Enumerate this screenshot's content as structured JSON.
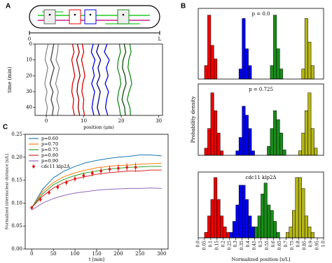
{
  "panel_labels": {
    "a": "A",
    "b": "B",
    "c": "C"
  },
  "diagram": {
    "start_label": "0",
    "end_label": "L"
  },
  "chart_data": [
    {
      "type": "line",
      "ylabel": "time (min)",
      "xlabel": "position (μm)",
      "xlim": [
        -3,
        31
      ],
      "xticks": [
        0,
        10,
        20,
        30
      ],
      "ylim": [
        0,
        45
      ],
      "yticks": [
        0,
        10,
        20,
        30,
        40
      ],
      "y_inverted": true,
      "y": [
        0,
        5,
        10,
        15,
        20,
        25,
        30,
        35,
        40,
        45
      ],
      "series": [
        {
          "color": "#888888",
          "values": [
            0.5,
            0.0,
            -0.3,
            0.4,
            0.0,
            -0.4,
            0.2,
            -0.2,
            0.3,
            0.0
          ]
        },
        {
          "color": "#444444",
          "values": [
            2.0,
            1.6,
            1.2,
            2.1,
            1.5,
            1.0,
            1.8,
            1.3,
            1.9,
            1.6
          ]
        },
        {
          "color": "#888888",
          "values": [
            3.2,
            3.0,
            2.6,
            3.5,
            3.0,
            2.5,
            3.2,
            2.8,
            3.4,
            3.0
          ]
        },
        {
          "color": "#e00000",
          "values": [
            7.0,
            7.4,
            6.8,
            7.2,
            7.6,
            7.0,
            6.8,
            7.3,
            7.1,
            7.5
          ]
        },
        {
          "color": "#900000",
          "values": [
            8.3,
            8.8,
            8.1,
            8.6,
            9.0,
            8.4,
            8.2,
            8.7,
            8.5,
            8.9
          ]
        },
        {
          "color": "#e00000",
          "values": [
            9.6,
            10.0,
            9.4,
            9.9,
            10.3,
            9.7,
            9.5,
            10.0,
            9.8,
            10.2
          ]
        },
        {
          "color": "#0000dd",
          "values": [
            12.5,
            12.0,
            13.0,
            12.4,
            12.8,
            12.1,
            12.9,
            12.5,
            12.2,
            12.7
          ]
        },
        {
          "color": "#000080",
          "values": [
            14.0,
            13.4,
            14.5,
            13.8,
            14.3,
            13.5,
            14.4,
            14.0,
            13.6,
            14.2
          ]
        },
        {
          "color": "#0000dd",
          "values": [
            16.2,
            15.5,
            16.8,
            16.0,
            16.5,
            15.7,
            16.6,
            16.1,
            15.8,
            16.4
          ]
        },
        {
          "color": "#1a8c1a",
          "values": [
            19.5,
            19.8,
            19.2,
            19.0,
            19.6,
            19.9,
            19.3,
            19.0,
            19.5,
            19.8
          ]
        },
        {
          "color": "#0b4d0b",
          "values": [
            20.8,
            21.2,
            20.5,
            20.3,
            21.0,
            21.3,
            20.6,
            20.2,
            20.9,
            21.1
          ]
        },
        {
          "color": "#1a8c1a",
          "values": [
            22.3,
            22.6,
            22.0,
            21.8,
            22.4,
            22.8,
            22.1,
            21.6,
            22.3,
            22.5
          ]
        }
      ]
    },
    {
      "type": "histogram",
      "title": "p = 0.0",
      "xlim": [
        0,
        1
      ],
      "ylim": [
        0,
        10.5
      ],
      "series": [
        {
          "color": "#ee0000",
          "bins": [
            0.05,
            0.075,
            0.1,
            0.125,
            0.15
          ],
          "values": [
            2,
            9.5,
            5,
            3
          ]
        },
        {
          "color": "#0000ee",
          "bins": [
            0.325,
            0.35,
            0.375,
            0.4,
            0.425
          ],
          "values": [
            1.5,
            9,
            4.5,
            2
          ]
        },
        {
          "color": "#1a8c1a",
          "bins": [
            0.575,
            0.6,
            0.625,
            0.65,
            0.675
          ],
          "values": [
            2,
            9.5,
            4.5,
            1.5
          ]
        },
        {
          "color": "#b5b51a",
          "bins": [
            0.825,
            0.85,
            0.875,
            0.9,
            0.925
          ],
          "values": [
            1.5,
            9,
            5.5,
            2
          ]
        }
      ]
    },
    {
      "type": "histogram",
      "title": "p = 0.725",
      "ylabel": "Probability density",
      "xlim": [
        0,
        1
      ],
      "ylim": [
        0,
        8
      ],
      "series": [
        {
          "color": "#ee0000",
          "bins": [
            0.05,
            0.075,
            0.1,
            0.125,
            0.15,
            0.175,
            0.2
          ],
          "values": [
            0.8,
            3,
            7,
            5,
            2.5,
            0.5
          ]
        },
        {
          "color": "#0000ee",
          "bins": [
            0.3,
            0.325,
            0.35,
            0.375,
            0.4,
            0.425,
            0.45
          ],
          "values": [
            0.5,
            2,
            5.5,
            4.5,
            3,
            0.5
          ]
        },
        {
          "color": "#1a8c1a",
          "bins": [
            0.55,
            0.575,
            0.6,
            0.625,
            0.65,
            0.675,
            0.7
          ],
          "values": [
            1,
            3,
            5,
            4,
            2.5,
            0.6
          ]
        },
        {
          "color": "#b5b51a",
          "bins": [
            0.8,
            0.825,
            0.85,
            0.875,
            0.9,
            0.925,
            0.95
          ],
          "values": [
            0.5,
            2.5,
            5,
            7,
            3,
            0.8
          ]
        }
      ]
    },
    {
      "type": "histogram",
      "title": "cdc11 klp2Δ",
      "xlabel": "Normalized position [x/L]",
      "xlim": [
        0,
        1
      ],
      "ylim": [
        0,
        6
      ],
      "xticks": [
        {
          "value": 0,
          "label": "0.0"
        },
        0.05,
        0.1,
        0.15,
        0.2,
        0.25,
        0.3,
        0.35,
        0.4,
        0.45,
        0.5,
        0.55,
        0.6,
        0.65,
        0.7,
        0.75,
        0.8,
        0.85,
        0.9,
        0.95,
        {
          "value": 1,
          "label": "1.0"
        }
      ],
      "series": [
        {
          "color": "#ee0000",
          "bins": [
            0.05,
            0.075,
            0.1,
            0.125,
            0.15,
            0.175,
            0.2,
            0.225,
            0.25
          ],
          "values": [
            0.5,
            2,
            3.5,
            5.5,
            3.5,
            2,
            1,
            0.5
          ]
        },
        {
          "color": "#0000ee",
          "bins": [
            0.25,
            0.275,
            0.3,
            0.325,
            0.35,
            0.375,
            0.4,
            0.425,
            0.45
          ],
          "values": [
            0.5,
            1.5,
            3,
            4.8,
            4.8,
            3.5,
            2,
            1
          ]
        },
        {
          "color": "#1a8c1a",
          "bins": [
            0.45,
            0.475,
            0.5,
            0.525,
            0.55,
            0.575,
            0.6,
            0.625,
            0.65
          ],
          "values": [
            1,
            2,
            4,
            5,
            3,
            2.5,
            1.5,
            0.5
          ]
        },
        {
          "color": "#b5b51a",
          "bins": [
            0.7,
            0.725,
            0.75,
            0.775,
            0.8,
            0.825,
            0.85,
            0.875,
            0.9,
            0.925
          ],
          "values": [
            0.5,
            1,
            2.5,
            5.5,
            5.5,
            4.5,
            2,
            1,
            0.5
          ]
        }
      ]
    },
    {
      "type": "line",
      "xlabel": "t [min]",
      "ylabel": "Normalized internuclear distance [x/L]",
      "xlim": [
        -15,
        315
      ],
      "xticks": [
        0,
        50,
        100,
        150,
        200,
        250,
        300
      ],
      "ylim": [
        0,
        0.25
      ],
      "yticks": [
        {
          "value": 0,
          "label": "0.00"
        },
        0.05,
        {
          "value": 0.1,
          "label": "0.10"
        },
        0.15,
        {
          "value": 0.2,
          "label": "0.20"
        },
        0.25
      ],
      "legend": "upper left",
      "series": [
        {
          "name": "p=0.60",
          "color": "#1f77b4",
          "x": [
            0,
            25,
            50,
            75,
            100,
            125,
            150,
            175,
            200,
            225,
            250,
            275,
            300
          ],
          "values": [
            0.09,
            0.13,
            0.155,
            0.17,
            0.18,
            0.188,
            0.193,
            0.197,
            0.2,
            0.202,
            0.205,
            0.205,
            0.203
          ]
        },
        {
          "name": "p=0.70",
          "color": "#ff7f0e",
          "x": [
            0,
            25,
            50,
            75,
            100,
            125,
            150,
            175,
            200,
            225,
            250,
            275,
            300
          ],
          "values": [
            0.09,
            0.125,
            0.145,
            0.158,
            0.166,
            0.172,
            0.177,
            0.18,
            0.182,
            0.183,
            0.185,
            0.186,
            0.187
          ]
        },
        {
          "name": "p=0.75",
          "color": "#2ca02c",
          "x": [
            0,
            25,
            50,
            75,
            100,
            125,
            150,
            175,
            200,
            225,
            250,
            275,
            300
          ],
          "values": [
            0.09,
            0.12,
            0.14,
            0.152,
            0.16,
            0.166,
            0.17,
            0.174,
            0.176,
            0.178,
            0.179,
            0.18,
            0.18
          ]
        },
        {
          "name": "p=0.80",
          "color": "#d62728",
          "x": [
            0,
            25,
            50,
            75,
            100,
            125,
            150,
            175,
            200,
            225,
            250,
            275,
            300
          ],
          "values": [
            0.09,
            0.115,
            0.133,
            0.145,
            0.153,
            0.158,
            0.163,
            0.166,
            0.168,
            0.17,
            0.17,
            0.172,
            0.172
          ]
        },
        {
          "name": "p=0.90",
          "color": "#9467bd",
          "x": [
            0,
            25,
            50,
            75,
            100,
            125,
            150,
            175,
            200,
            225,
            250,
            275,
            300
          ],
          "values": [
            0.085,
            0.1,
            0.11,
            0.117,
            0.122,
            0.125,
            0.128,
            0.13,
            0.131,
            0.132,
            0.132,
            0.133,
            0.132
          ]
        },
        {
          "name": "cdc11 klp2Δ",
          "color": "#e31a1c",
          "marker": "diamond",
          "x": [
            0,
            20,
            40,
            60,
            80,
            100,
            120,
            140,
            160,
            180,
            200,
            220,
            240
          ],
          "values": [
            0.09,
            0.108,
            0.123,
            0.135,
            0.145,
            0.153,
            0.16,
            0.165,
            0.17,
            0.174,
            0.176,
            0.178,
            0.178
          ],
          "errors": [
            0.004,
            0.005,
            0.005,
            0.006,
            0.006,
            0.006,
            0.007,
            0.007,
            0.008,
            0.008,
            0.009,
            0.009,
            0.01
          ]
        }
      ]
    }
  ]
}
